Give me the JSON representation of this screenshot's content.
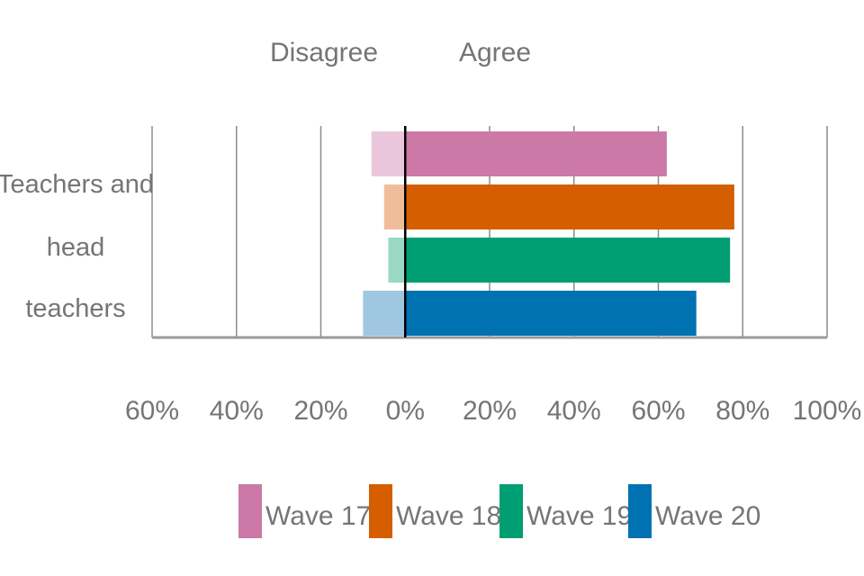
{
  "chart_data": {
    "type": "bar",
    "orientation": "horizontal-diverging",
    "header_labels": {
      "left": "Disagree",
      "right": "Agree"
    },
    "category_label_lines": [
      "Teachers and",
      "head",
      "teachers"
    ],
    "categories": [
      "Teachers and head teachers"
    ],
    "x_ticks": [
      "60%",
      "40%",
      "20%",
      "0%",
      "20%",
      "40%",
      "60%",
      "80%",
      "100%"
    ],
    "xlim": [
      -60,
      100
    ],
    "grid": true,
    "legend_position": "bottom",
    "series": [
      {
        "name": "Wave 17",
        "disagree": 8,
        "agree": 62,
        "color": "#CC79A7",
        "disagree_color": "#E9C6DC"
      },
      {
        "name": "Wave 18",
        "disagree": 5,
        "agree": 78,
        "color": "#D55E00",
        "disagree_color": "#F0BD9A"
      },
      {
        "name": "Wave 19",
        "disagree": 4,
        "agree": 77,
        "color": "#009E73",
        "disagree_color": "#99D8C5"
      },
      {
        "name": "Wave 20",
        "disagree": 10,
        "agree": 69,
        "color": "#0072B2",
        "disagree_color": "#9FC7E0"
      }
    ]
  }
}
